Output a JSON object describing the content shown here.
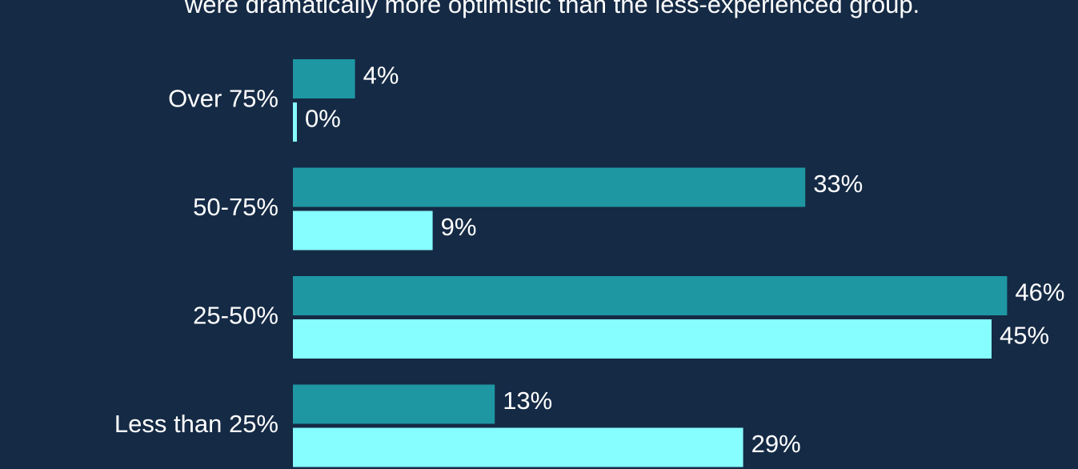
{
  "chart_data": {
    "type": "hbar",
    "subtitle": "were dramatically more optimistic than the less-experienced group.",
    "categories": [
      "Over 75%",
      "50-75%",
      "25-50%",
      "Less than 25%"
    ],
    "series": [
      {
        "color": "#1e97a3",
        "values": [
          4,
          33,
          46,
          13
        ],
        "value_labels": [
          "4%",
          "33%",
          "46%",
          "13%"
        ]
      },
      {
        "color": "#86fdfe",
        "values": [
          0,
          9,
          45,
          29
        ],
        "value_labels": [
          "0%",
          "9%",
          "45%",
          "29%"
        ]
      }
    ]
  }
}
